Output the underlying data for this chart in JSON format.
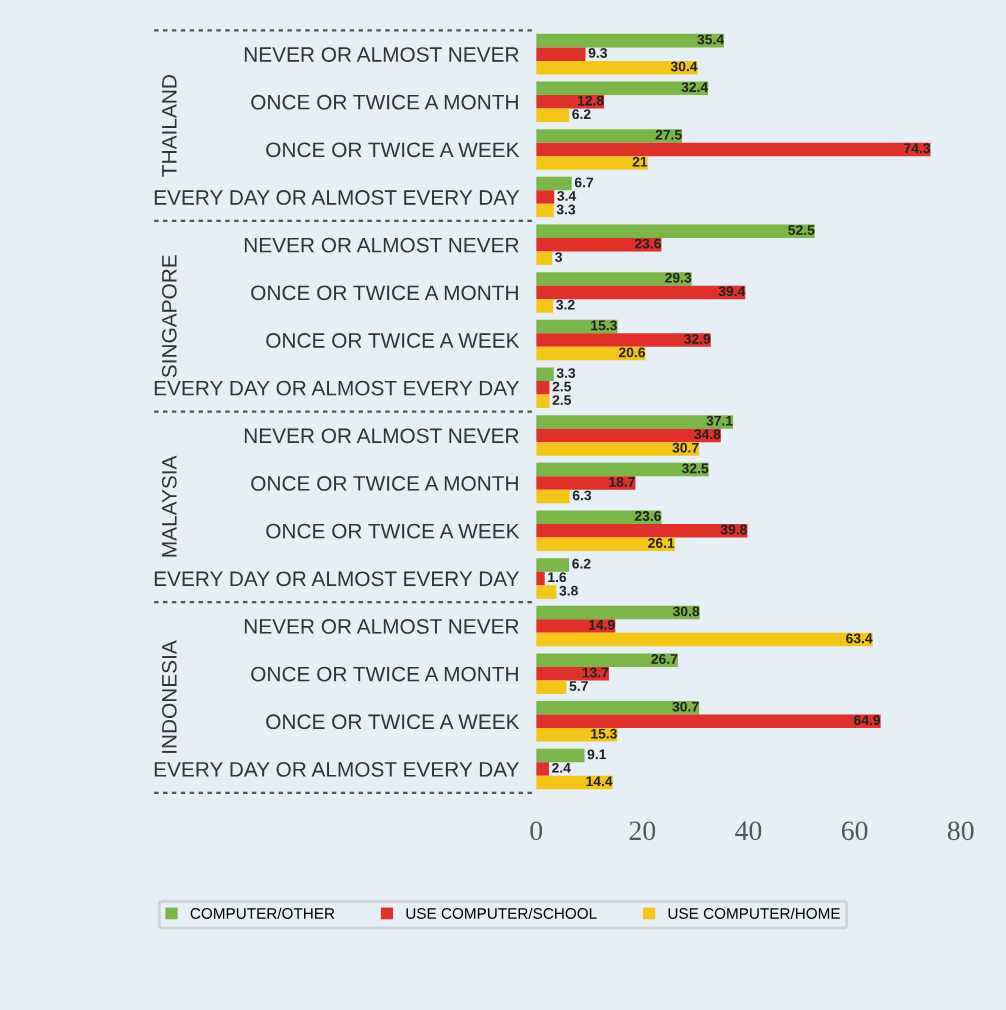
{
  "chart_data": {
    "type": "bar",
    "orientation": "horizontal",
    "categories": [
      "NEVER OR ALMOST NEVER",
      "ONCE OR TWICE A MONTH",
      "ONCE OR TWICE A WEEK",
      "EVERY DAY OR ALMOST EVERY DAY",
      "NEVER OR ALMOST NEVER",
      "ONCE OR TWICE A MONTH",
      "ONCE OR TWICE A WEEK",
      "EVERY DAY OR ALMOST EVERY DAY",
      "NEVER OR ALMOST NEVER",
      "ONCE OR TWICE A MONTH",
      "ONCE OR TWICE A WEEK",
      "EVERY DAY OR ALMOST EVERY DAY",
      "NEVER OR ALMOST NEVER",
      "ONCE OR TWICE A MONTH",
      "ONCE OR TWICE A WEEK",
      "EVERY DAY OR ALMOST EVERY DAY"
    ],
    "series": [
      {
        "name": "COMPUTER/OTHER",
        "color": "#7ab648",
        "values": [
          35.4,
          32.4,
          27.5,
          6.7,
          52.5,
          29.3,
          15.3,
          3.3,
          37.1,
          32.5,
          23.6,
          6.2,
          30.8,
          26.7,
          30.7,
          9.1
        ]
      },
      {
        "name": "USE COMPUTER/SCHOOL",
        "color": "#e0302a",
        "values": [
          9.3,
          12.8,
          74.3,
          3.4,
          23.6,
          39.4,
          32.9,
          2.5,
          34.8,
          18.7,
          39.8,
          1.6,
          14.9,
          13.7,
          64.9,
          2.4
        ]
      },
      {
        "name": "USE COMPUTER/HOME",
        "color": "#f5c518",
        "values": [
          30.4,
          6.2,
          21,
          3.3,
          3,
          3.2,
          20.6,
          2.5,
          30.7,
          6.3,
          26.1,
          3.8,
          63.4,
          5.7,
          15.3,
          14.4
        ]
      }
    ],
    "annotations": [
      "THAILAND",
      "SINGAPORE",
      "MALAYSIA",
      "INDONESIA"
    ],
    "xlim": [
      0,
      80
    ],
    "xticks": [
      0,
      20,
      40,
      60,
      80
    ],
    "data_labels": true,
    "legend": "bottom",
    "grid": false
  }
}
